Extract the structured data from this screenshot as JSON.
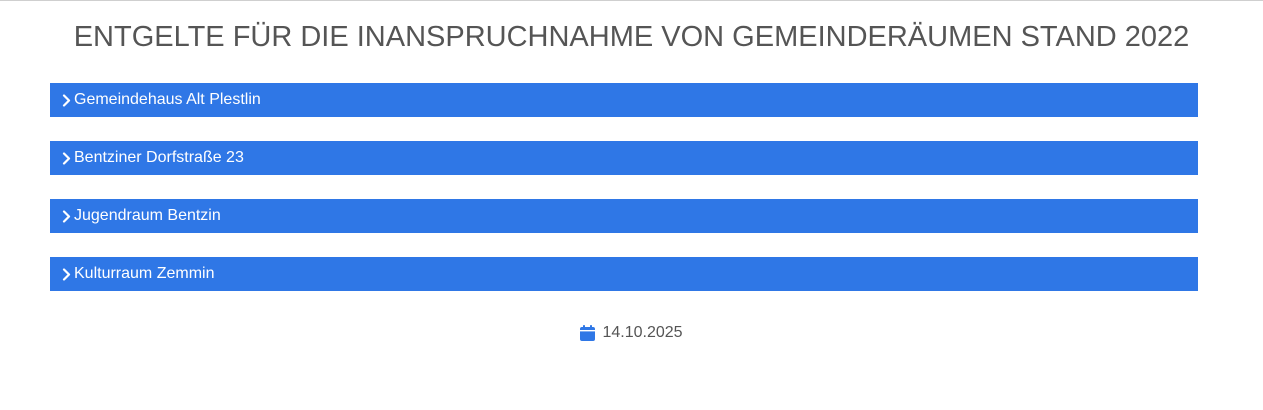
{
  "page": {
    "title": "ENTGELTE FÜR DIE INANSPRUCHNAHME VON GEMEINDERÄUMEN STAND 2022"
  },
  "accordion": {
    "items": [
      {
        "label": "Gemeindehaus Alt Plestlin",
        "icon": "chevron-right-icon"
      },
      {
        "label": "Bentziner Dorfstraße 23",
        "icon": "chevron-right-icon"
      },
      {
        "label": "Jugendraum Bentzin",
        "icon": "chevron-right-icon"
      },
      {
        "label": "Kulturraum Zemmin",
        "icon": "chevron-right-icon"
      }
    ]
  },
  "meta": {
    "date": "14.10.2025",
    "date_icon": "calendar-icon"
  },
  "colors": {
    "accent": "#2f77e6",
    "title_text": "#555555"
  }
}
